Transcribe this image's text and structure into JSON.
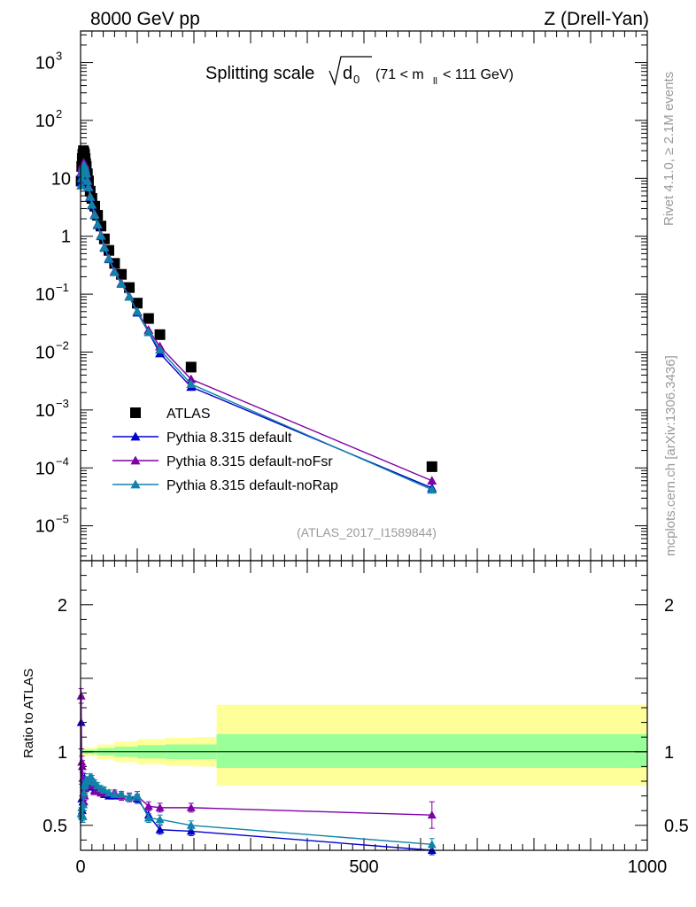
{
  "header": {
    "left": "8000 GeV pp",
    "right": "Z (Drell-Yan)"
  },
  "side": {
    "rivet": "Rivet 4.1.0, ≥ 2.1M events",
    "mcplots": "mcplots.cern.ch [arXiv:1306.3436]"
  },
  "watermark": "(ATLAS_2017_I1589844)",
  "chart_data": {
    "type": "scatter",
    "title": "Splitting scale √d₀ (71 < m_ll < 111 GeV)",
    "title_main": "Splitting scale",
    "title_sym": "d",
    "title_sub": "0",
    "title_range": "(71 < m",
    "title_range_sub": "ll",
    "title_range_end": "< 111 GeV)",
    "xlim": [
      0,
      1000
    ],
    "xticks": [
      "0",
      "500",
      "1000"
    ],
    "xtick_values": [
      0,
      500,
      1000
    ],
    "main": {
      "yscale": "log",
      "ylim": [
        2.5e-06,
        3500
      ],
      "yticks": [
        {
          "v": 1000.0,
          "base": "10",
          "exp": "3"
        },
        {
          "v": 100.0,
          "base": "10",
          "exp": "2"
        },
        {
          "v": 10,
          "base": "10",
          "exp": ""
        },
        {
          "v": 1,
          "base": "1",
          "exp": ""
        },
        {
          "v": 0.1,
          "base": "10",
          "exp": "−1"
        },
        {
          "v": 0.01,
          "base": "10",
          "exp": "−2"
        },
        {
          "v": 0.001,
          "base": "10",
          "exp": "−3"
        },
        {
          "v": 0.0001,
          "base": "10",
          "exp": "−4"
        },
        {
          "v": 1e-05,
          "base": "10",
          "exp": "−5"
        }
      ]
    },
    "ratio": {
      "ylabel": "Ratio to ATLAS",
      "ylim": [
        0.33,
        2.3
      ],
      "yticks": [
        {
          "v": 0.5,
          "label": "0.5"
        },
        {
          "v": 1,
          "label": "1"
        },
        {
          "v": 2,
          "label": "2"
        }
      ],
      "band_edges": [
        0,
        30,
        60,
        100,
        150,
        200,
        240,
        1000
      ],
      "band_inner": [
        [
          0.985,
          1.015
        ],
        [
          0.975,
          1.025
        ],
        [
          0.965,
          1.035
        ],
        [
          0.955,
          1.045
        ],
        [
          0.95,
          1.05
        ],
        [
          0.95,
          1.05
        ],
        [
          0.89,
          1.12
        ]
      ],
      "band_outer": [
        [
          0.97,
          1.03
        ],
        [
          0.95,
          1.05
        ],
        [
          0.93,
          1.07
        ],
        [
          0.915,
          1.085
        ],
        [
          0.905,
          1.095
        ],
        [
          0.9,
          1.1
        ],
        [
          0.77,
          1.32
        ]
      ]
    },
    "x": [
      1,
      2,
      3,
      4,
      5,
      6,
      7,
      8,
      9,
      10,
      12,
      14,
      17,
      20,
      25,
      30,
      36,
      42,
      50,
      60,
      72,
      86,
      100,
      120,
      140,
      195,
      620
    ],
    "series": [
      {
        "name": "ATLAS",
        "color": "#000000",
        "marker": "square",
        "values": [
          9,
          16,
          22,
          26,
          30,
          28,
          26,
          22,
          18,
          16,
          12,
          9,
          6,
          4.5,
          3.3,
          2.3,
          1.5,
          0.9,
          0.57,
          0.34,
          0.22,
          0.13,
          0.07,
          0.038,
          0.02,
          0.0055,
          0.000105
        ]
      },
      {
        "name": "Pythia 8.315 default",
        "color": "#0000cc",
        "marker": "triangle",
        "values": [
          8.5,
          11,
          13.5,
          15.5,
          16.5,
          17.5,
          16.5,
          15,
          13,
          12,
          9,
          7,
          4.7,
          3.4,
          2.3,
          1.55,
          1.0,
          0.63,
          0.4,
          0.24,
          0.15,
          0.09,
          0.048,
          0.022,
          0.0095,
          0.0025,
          4.5e-05
        ]
      },
      {
        "name": "Pythia 8.315 default-noFsr",
        "color": "#7f00a6",
        "marker": "triangle",
        "values": [
          12.5,
          15,
          16.5,
          17.5,
          18.5,
          18.5,
          17.5,
          16,
          14,
          12.5,
          9.5,
          7.3,
          4.9,
          3.5,
          2.4,
          1.6,
          1.05,
          0.65,
          0.42,
          0.25,
          0.155,
          0.092,
          0.05,
          0.024,
          0.0125,
          0.0034,
          6e-05
        ]
      },
      {
        "name": "Pythia 8.315 default-noRap",
        "color": "#0f83a8",
        "marker": "triangle",
        "values": [
          7.5,
          10,
          12.5,
          14.5,
          16,
          17,
          16,
          14.5,
          13,
          12,
          9,
          7,
          4.8,
          3.5,
          2.35,
          1.6,
          1.02,
          0.64,
          0.41,
          0.24,
          0.15,
          0.09,
          0.05,
          0.022,
          0.011,
          0.0028,
          4.2e-05
        ]
      }
    ],
    "ratios": [
      {
        "name": "Pythia 8.315 default",
        "values": [
          1.2,
          0.68,
          0.6,
          0.66,
          0.72,
          0.78,
          0.82,
          0.8,
          0.78,
          0.78,
          0.78,
          0.77,
          0.78,
          0.76,
          0.74,
          0.74,
          0.73,
          0.71,
          0.7,
          0.7,
          0.7,
          0.69,
          0.68,
          0.57,
          0.47,
          0.46,
          0.33
        ],
        "errors": [
          0.18,
          0.1,
          0.08,
          0.06,
          0.05,
          0.04,
          0.03,
          0.03,
          0.03,
          0.02,
          0.02,
          0.02,
          0.02,
          0.02,
          0.02,
          0.02,
          0.02,
          0.02,
          0.02,
          0.02,
          0.02,
          0.02,
          0.03,
          0.03,
          0.03,
          0.03,
          0.03
        ]
      },
      {
        "name": "Pythia 8.315 default-noFsr",
        "values": [
          1.38,
          0.93,
          0.9,
          0.82,
          0.72,
          0.66,
          0.7,
          0.75,
          0.78,
          0.78,
          0.79,
          0.78,
          0.77,
          0.77,
          0.73,
          0.74,
          0.72,
          0.72,
          0.72,
          0.72,
          0.7,
          0.69,
          0.7,
          0.63,
          0.62,
          0.62,
          0.57
        ],
        "errors": [
          0.05,
          0.04,
          0.04,
          0.04,
          0.03,
          0.03,
          0.03,
          0.03,
          0.03,
          0.03,
          0.02,
          0.02,
          0.02,
          0.02,
          0.02,
          0.02,
          0.02,
          0.02,
          0.02,
          0.02,
          0.03,
          0.03,
          0.03,
          0.03,
          0.03,
          0.03,
          0.09
        ]
      },
      {
        "name": "Pythia 8.315 default-noRap",
        "values": [
          0.58,
          0.62,
          0.57,
          0.56,
          0.64,
          0.72,
          0.77,
          0.78,
          0.8,
          0.8,
          0.81,
          0.8,
          0.83,
          0.82,
          0.79,
          0.77,
          0.75,
          0.74,
          0.72,
          0.71,
          0.71,
          0.69,
          0.7,
          0.55,
          0.54,
          0.5,
          0.37
        ],
        "errors": [
          0.04,
          0.04,
          0.04,
          0.04,
          0.04,
          0.03,
          0.03,
          0.03,
          0.03,
          0.03,
          0.02,
          0.02,
          0.02,
          0.02,
          0.02,
          0.02,
          0.02,
          0.02,
          0.02,
          0.02,
          0.02,
          0.02,
          0.03,
          0.03,
          0.03,
          0.03,
          0.04
        ]
      }
    ]
  }
}
